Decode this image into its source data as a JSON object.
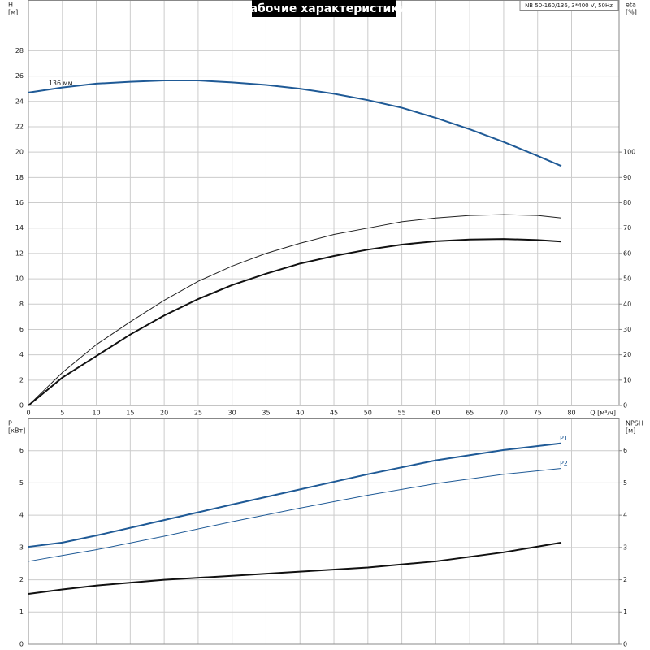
{
  "chart_data": [
    {
      "type": "line",
      "title": "Рабочие характеристики",
      "subtitle": "NB 50-160/136, 3*400 V, 50Hz",
      "xlabel": "Q [м³/ч]",
      "ylabel": "H",
      "yunit": "[м]",
      "y2label": "eta",
      "y2unit": "[%]",
      "xlim": [
        0,
        87
      ],
      "ylim": [
        0,
        32
      ],
      "y2lim": [
        0,
        160
      ],
      "xticks": [
        0,
        5,
        10,
        15,
        20,
        25,
        30,
        35,
        40,
        45,
        50,
        55,
        60,
        65,
        70,
        75,
        80
      ],
      "yticks": [
        0,
        2,
        4,
        6,
        8,
        10,
        12,
        14,
        16,
        18,
        20,
        22,
        24,
        26,
        28
      ],
      "y2ticks": [
        0,
        10,
        20,
        30,
        40,
        50,
        60,
        70,
        80,
        90,
        100
      ],
      "grid": true,
      "series": [
        {
          "label": "136 мм",
          "color": "#1f5a96",
          "linewidth": 2,
          "x": [
            0,
            5,
            10,
            15,
            20,
            25,
            30,
            35,
            40,
            45,
            50,
            55,
            60,
            65,
            70,
            75,
            78.5
          ],
          "values": [
            24.7,
            25.1,
            25.4,
            25.55,
            25.65,
            25.65,
            25.5,
            25.3,
            25.0,
            24.6,
            24.1,
            23.5,
            22.7,
            21.8,
            20.8,
            19.7,
            18.9
          ]
        },
        {
          "axis": "y2",
          "color": "#222222",
          "linewidth": 1,
          "x": [
            0,
            5,
            10,
            15,
            20,
            25,
            30,
            35,
            40,
            45,
            50,
            55,
            60,
            65,
            70,
            75,
            78.5
          ],
          "values": [
            0,
            13,
            24,
            33,
            41.5,
            49,
            55,
            60,
            64,
            67.5,
            70,
            72.5,
            74,
            75,
            75.3,
            75,
            74
          ]
        },
        {
          "axis": "y2",
          "color": "#111111",
          "linewidth": 2,
          "x": [
            0,
            5,
            10,
            15,
            20,
            25,
            30,
            35,
            40,
            45,
            50,
            55,
            60,
            65,
            70,
            75,
            78.5
          ],
          "values": [
            0,
            11,
            19.5,
            28,
            35.5,
            42,
            47.5,
            52,
            56,
            59,
            61.5,
            63.5,
            64.8,
            65.5,
            65.7,
            65.3,
            64.7
          ]
        }
      ]
    },
    {
      "type": "line",
      "ylabel": "P",
      "yunit": "[кВт]",
      "y2label": "NPSH",
      "y2unit": "[м]",
      "xlim": [
        0,
        87
      ],
      "ylim": [
        0,
        7
      ],
      "y2lim": [
        0,
        7
      ],
      "xticks": [
        0,
        5,
        10,
        15,
        20,
        25,
        30,
        35,
        40,
        45,
        50,
        55,
        60,
        65,
        70,
        75,
        80
      ],
      "xtick_labels": false,
      "yticks": [
        0,
        1,
        2,
        3,
        4,
        5,
        6
      ],
      "y2ticks": [
        0,
        1,
        2,
        3,
        4,
        5,
        6
      ],
      "grid": true,
      "series": [
        {
          "name": "P1",
          "color": "#1f5a96",
          "linewidth": 2,
          "x": [
            0,
            5,
            10,
            20,
            30,
            40,
            50,
            60,
            70,
            78.5
          ],
          "values": [
            3.02,
            3.15,
            3.37,
            3.85,
            4.33,
            4.8,
            5.27,
            5.7,
            6.02,
            6.23
          ]
        },
        {
          "name": "P2",
          "color": "#1f5a96",
          "linewidth": 1,
          "x": [
            0,
            5,
            10,
            20,
            30,
            40,
            50,
            60,
            70,
            78.5
          ],
          "values": [
            2.57,
            2.75,
            2.93,
            3.35,
            3.8,
            4.22,
            4.62,
            4.98,
            5.27,
            5.45
          ]
        },
        {
          "axis": "y2",
          "color": "#111111",
          "linewidth": 2,
          "x": [
            0,
            5,
            10,
            20,
            30,
            40,
            50,
            60,
            70,
            78.5
          ],
          "values": [
            1.56,
            1.7,
            1.82,
            2.0,
            2.12,
            2.25,
            2.38,
            2.57,
            2.85,
            3.15
          ]
        }
      ]
    }
  ]
}
